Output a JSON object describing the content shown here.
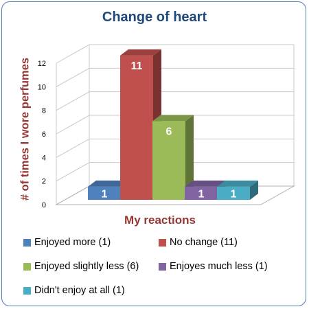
{
  "chart_data": {
    "type": "bar",
    "title": "Change of heart",
    "xlabel": "My reactions",
    "ylabel": "# of times I wore perfumes",
    "ylim": [
      0,
      12
    ],
    "yticks": [
      "0",
      "2",
      "4",
      "6",
      "8",
      "10",
      "12"
    ],
    "grid": true,
    "legend_position": "bottom",
    "series": [
      {
        "name": "Enjoyed more (1)",
        "value": 1,
        "label": "1",
        "color": "#4f81bd"
      },
      {
        "name": "No change (11)",
        "value": 11,
        "label": "11",
        "color": "#c0504d"
      },
      {
        "name": "Enjoyed slightly less (6)",
        "value": 6,
        "label": "6",
        "color": "#9bbb59"
      },
      {
        "name": "Enjoyes much less (1)",
        "value": 1,
        "label": "1",
        "color": "#8064a2"
      },
      {
        "name": "Didn't enjoy at all (1)",
        "value": 1,
        "label": "1",
        "color": "#4bacc6"
      }
    ]
  }
}
